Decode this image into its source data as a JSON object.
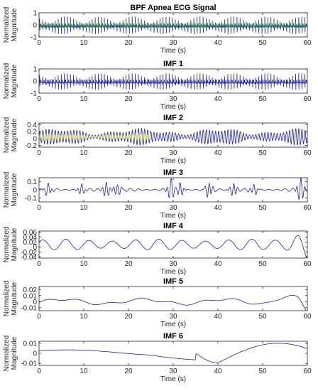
{
  "chart_data": [
    {
      "type": "line",
      "title": "BPF Apnea ECG Signal",
      "xlabel": "Time (s)",
      "ylabel_lines": [
        "Normalized",
        "Magnitude"
      ],
      "xlim": [
        0,
        60
      ],
      "ylim": [
        -1,
        1
      ],
      "xticks": [
        0,
        10,
        20,
        30,
        40,
        50,
        60
      ],
      "yticks": [
        -1,
        0,
        1
      ],
      "series": [
        {
          "color": "#1f1fa8",
          "signal": {
            "kind": "ecg",
            "cycles_per_second": 1.45,
            "amplitude": 0.85,
            "samples": 1400
          }
        },
        {
          "color": "#2e8b3a",
          "signal": {
            "kind": "ecg",
            "cycles_per_second": 1.45,
            "amplitude": 0.35,
            "samples": 1400
          }
        }
      ]
    },
    {
      "type": "line",
      "title": "IMF 1",
      "xlabel": "Time (s)",
      "ylabel_lines": [
        "Normalized",
        "Magnitude"
      ],
      "xlim": [
        0,
        60
      ],
      "ylim": [
        -1,
        1
      ],
      "xticks": [
        0,
        10,
        20,
        30,
        40,
        50,
        60
      ],
      "yticks": [
        -1,
        0,
        1
      ],
      "series": [
        {
          "color": "#1f1fa8",
          "signal": {
            "kind": "ecg",
            "cycles_per_second": 1.45,
            "amplitude": 0.8,
            "samples": 1400
          }
        }
      ]
    },
    {
      "type": "line",
      "title": "IMF 2",
      "xlabel": "Time (s)",
      "ylabel_lines": [
        "Normalized",
        "Magnitude"
      ],
      "xlim": [
        0,
        60
      ],
      "ylim": [
        -0.25,
        0.45
      ],
      "xticks": [
        0,
        10,
        20,
        30,
        40,
        50,
        60
      ],
      "yticks": [
        -0.2,
        0,
        0.2,
        0.4
      ],
      "ytick_labels": [
        "-0.2",
        "0",
        "0.2",
        "0.4"
      ],
      "series": [
        {
          "color": "#1f1fa8",
          "signal": {
            "kind": "oscillation",
            "cycles_per_second": 1.45,
            "amplitude": 0.2,
            "offset": 0.05,
            "samples": 1400
          }
        },
        {
          "color": "#c8c832",
          "signal": {
            "kind": "oscillation",
            "cycles_per_second": 1.45,
            "amplitude": 0.09,
            "offset": 0.05,
            "xmax": 25,
            "samples": 700
          }
        }
      ]
    },
    {
      "type": "line",
      "title": "IMF 3",
      "xlabel": "Time (s)",
      "ylabel_lines": [
        "Normalized",
        "Magnitude"
      ],
      "xlim": [
        0,
        60
      ],
      "ylim": [
        -0.15,
        0.15
      ],
      "xticks": [
        0,
        10,
        20,
        30,
        40,
        50,
        60
      ],
      "yticks": [
        -0.1,
        0,
        0.1
      ],
      "ytick_labels": [
        "-0.1",
        "0",
        "0.1"
      ],
      "series": [
        {
          "color": "#1f1fa8",
          "signal": {
            "kind": "bursty",
            "cycles_per_second": 0.55,
            "amplitude": 0.04,
            "bursts": [
              [
                2,
                0.07
              ],
              [
                9.5,
                0.06
              ],
              [
                15,
                0.09
              ],
              [
                17.5,
                0.07
              ],
              [
                29.5,
                0.12
              ],
              [
                31.5,
                0.08
              ],
              [
                38,
                0.09
              ],
              [
                43.5,
                0.08
              ],
              [
                48,
                0.06
              ],
              [
                58.5,
                0.14
              ]
            ],
            "samples": 1200
          }
        }
      ]
    },
    {
      "type": "line",
      "title": "IMF 4",
      "xlabel": "Time (s)",
      "ylabel_lines": [
        "Normalized",
        "Magnitude"
      ],
      "xlim": [
        0,
        60
      ],
      "ylim": [
        -0.045,
        0.065
      ],
      "xticks": [
        0,
        10,
        20,
        30,
        40,
        50,
        60
      ],
      "yticks": [
        -0.04,
        -0.02,
        0,
        0.02,
        0.04,
        0.06
      ],
      "ytick_labels": [
        "-0.04",
        "-0.02",
        "0",
        "0.02",
        "0.04",
        "0.06"
      ],
      "series": [
        {
          "color": "#1f1fa8",
          "signal": {
            "kind": "imf4",
            "samples": 900
          }
        }
      ]
    },
    {
      "type": "line",
      "title": "IMF 5",
      "xlabel": "Time (s)",
      "ylabel_lines": [
        "Normalized",
        "Magnitude"
      ],
      "xlim": [
        0,
        60
      ],
      "ylim": [
        -0.015,
        0.025
      ],
      "xticks": [
        0,
        10,
        20,
        30,
        40,
        50,
        60
      ],
      "yticks": [
        -0.01,
        0,
        0.01,
        0.02
      ],
      "ytick_labels": [
        "-0.01",
        "0",
        "0.01",
        "0.02"
      ],
      "series": [
        {
          "color": "#1f1fa8",
          "signal": {
            "kind": "imf5",
            "samples": 600
          }
        }
      ]
    },
    {
      "type": "line",
      "title": "IMF 6",
      "xlabel": "Time (s)",
      "ylabel_lines": [
        "Normalized",
        "Magnitude"
      ],
      "xlim": [
        0,
        60
      ],
      "ylim": [
        -0.012,
        0.012
      ],
      "xticks": [
        0,
        10,
        20,
        30,
        40,
        50,
        60
      ],
      "yticks": [
        -0.01,
        0,
        0.01
      ],
      "ytick_labels": [
        "-0.01",
        "0",
        "0.01"
      ],
      "series": [
        {
          "color": "#1f1fa8",
          "signal": {
            "kind": "imf6",
            "samples": 400
          }
        }
      ]
    }
  ]
}
